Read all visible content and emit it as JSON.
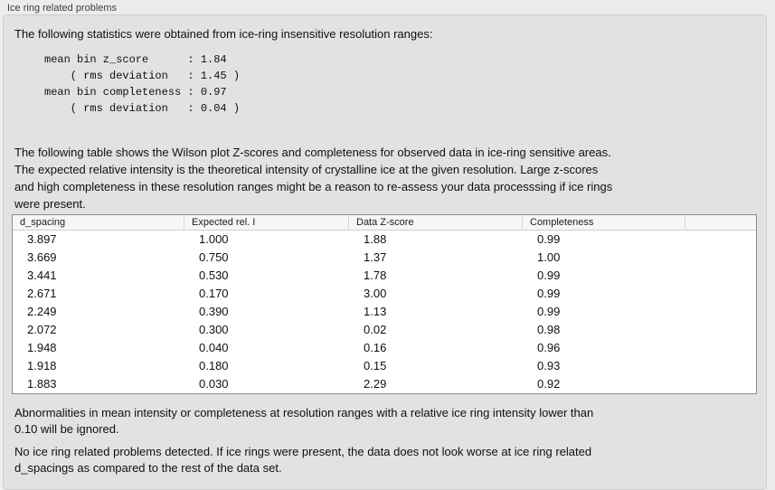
{
  "panel": {
    "title": "Ice ring related problems"
  },
  "intro": {
    "text": "The following statistics were obtained from ice-ring insensitive resolution ranges:"
  },
  "stats_block": {
    "lines": [
      "mean bin z_score      : 1.84",
      "    ( rms deviation   : 1.45 )",
      "mean bin completeness : 0.97",
      "    ( rms deviation   : 0.04 )"
    ]
  },
  "description": {
    "lines": [
      "The following table shows the Wilson plot Z-scores and completeness for observed data in ice-ring sensitive areas.",
      "The expected relative intensity is the theoretical intensity of crystalline ice at the given resolution. Large z-scores",
      "and high completeness in these resolution ranges might be a reason to re-assess your data processsing if ice rings",
      "were present."
    ]
  },
  "table": {
    "columns": [
      "d_spacing",
      "Expected rel. I",
      "Data Z-score",
      "Completeness"
    ],
    "rows": [
      [
        "3.897",
        "1.000",
        "1.88",
        "0.99"
      ],
      [
        "3.669",
        "0.750",
        "1.37",
        "1.00"
      ],
      [
        "3.441",
        "0.530",
        "1.78",
        "0.99"
      ],
      [
        "2.671",
        "0.170",
        "3.00",
        "0.99"
      ],
      [
        "2.249",
        "0.390",
        "1.13",
        "0.99"
      ],
      [
        "2.072",
        "0.300",
        "0.02",
        "0.98"
      ],
      [
        "1.948",
        "0.040",
        "0.16",
        "0.96"
      ],
      [
        "1.918",
        "0.180",
        "0.15",
        "0.93"
      ],
      [
        "1.883",
        "0.030",
        "2.29",
        "0.92"
      ]
    ]
  },
  "notes": {
    "ignore_note_lines": [
      "Abnormalities in mean intensity or completeness at resolution ranges with a relative ice ring intensity lower than",
      "0.10 will be ignored."
    ],
    "conclusion_lines": [
      "No ice ring related problems detected. If ice rings were present, the data does not look worse at ice ring related",
      "d_spacings as compared to the rest of the data set."
    ]
  }
}
